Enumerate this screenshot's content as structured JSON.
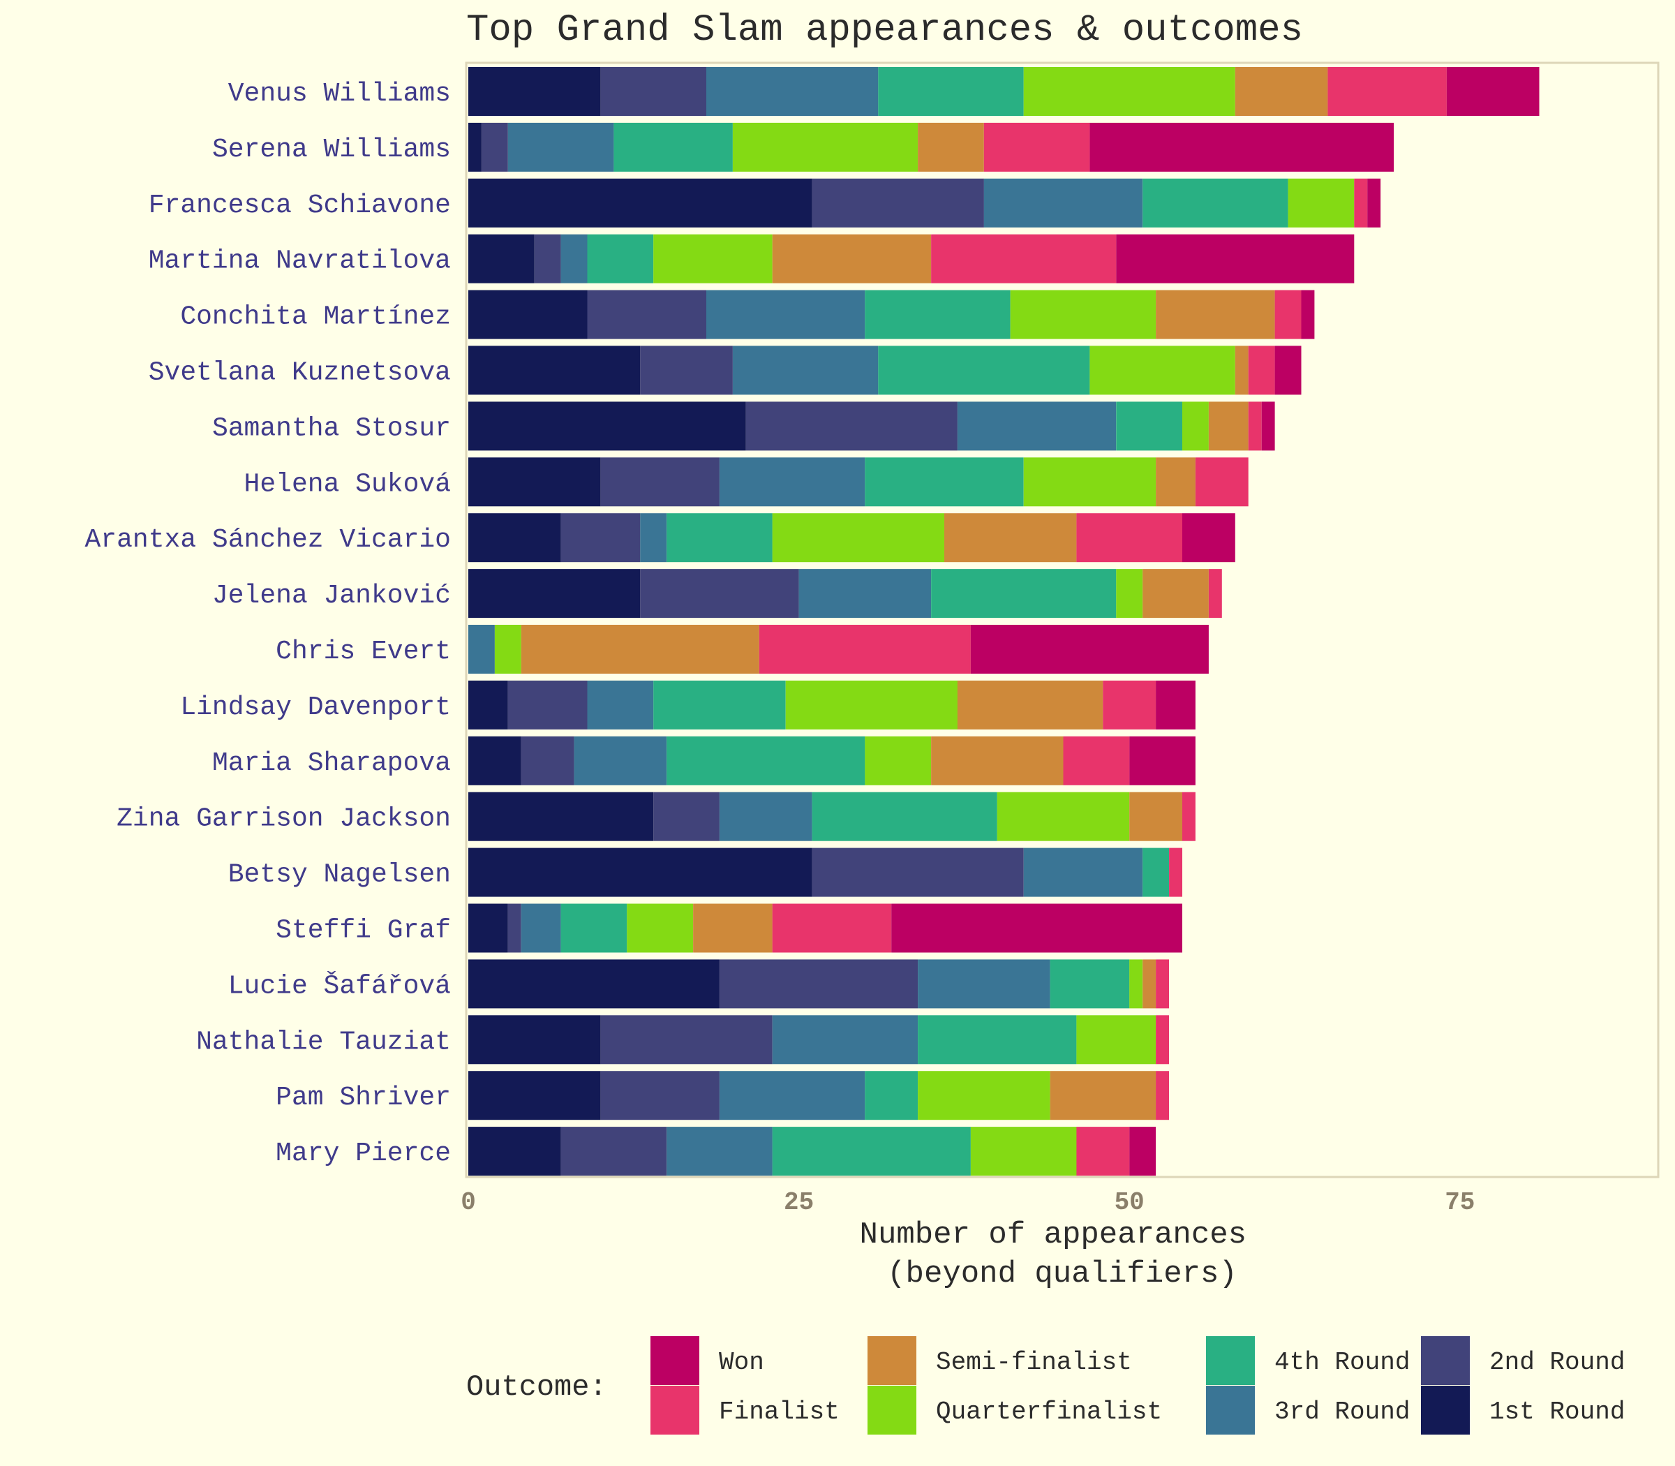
{
  "chart_data": {
    "type": "bar",
    "orientation": "horizontal",
    "stacked": true,
    "title": "Top Grand Slam appearances & outcomes",
    "xlabel": "Number of appearances\n(beyond qualifiers)",
    "ylabel": "",
    "xlim": [
      0,
      90
    ],
    "x_ticks": [
      "0",
      "25",
      "50",
      "75"
    ],
    "grid": false,
    "legend_title": "Outcome:",
    "legend_position": "bottom",
    "categories": [
      "Venus Williams",
      "Serena Williams",
      "Francesca Schiavone",
      "Martina Navratilova",
      "Conchita Martínez",
      "Svetlana Kuznetsova",
      "Samantha Stosur",
      "Helena Suková",
      "Arantxa Sánchez Vicario",
      "Jelena Janković",
      "Chris Evert",
      "Lindsay Davenport",
      "Maria Sharapova",
      "Zina Garrison Jackson",
      "Betsy Nagelsen",
      "Steffi Graf",
      "Lucie Šafářová",
      "Nathalie Tauziat",
      "Pam Shriver",
      "Mary Pierce"
    ],
    "series": [
      {
        "name": "1st Round",
        "color": "#131A55",
        "values": [
          10,
          1,
          26,
          5,
          9,
          13,
          21,
          10,
          7,
          13,
          0,
          3,
          4,
          14,
          26,
          3,
          19,
          10,
          10,
          7
        ]
      },
      {
        "name": "2nd Round",
        "color": "#41437A",
        "values": [
          8,
          2,
          13,
          2,
          9,
          7,
          16,
          9,
          6,
          12,
          0,
          6,
          4,
          5,
          16,
          1,
          15,
          13,
          9,
          8
        ]
      },
      {
        "name": "3rd Round",
        "color": "#3A7595",
        "values": [
          13,
          8,
          12,
          2,
          12,
          11,
          12,
          11,
          2,
          10,
          2,
          5,
          7,
          7,
          9,
          3,
          10,
          11,
          11,
          8
        ]
      },
      {
        "name": "4th Round",
        "color": "#29B083",
        "values": [
          11,
          9,
          11,
          5,
          11,
          16,
          5,
          12,
          8,
          14,
          0,
          10,
          15,
          14,
          2,
          5,
          6,
          12,
          4,
          15
        ]
      },
      {
        "name": "Quarterfinalist",
        "color": "#84DA14",
        "values": [
          16,
          14,
          5,
          9,
          11,
          11,
          2,
          10,
          13,
          2,
          2,
          13,
          5,
          10,
          0,
          5,
          1,
          6,
          10,
          8
        ]
      },
      {
        "name": "Semi-finalist",
        "color": "#CE893A",
        "values": [
          7,
          5,
          0,
          12,
          9,
          1,
          3,
          3,
          10,
          5,
          18,
          11,
          10,
          4,
          0,
          6,
          1,
          0,
          8,
          0
        ]
      },
      {
        "name": "Finalist",
        "color": "#E8346B",
        "values": [
          9,
          8,
          1,
          14,
          2,
          2,
          1,
          4,
          8,
          1,
          16,
          4,
          5,
          1,
          1,
          9,
          1,
          1,
          1,
          4
        ]
      },
      {
        "name": "Won",
        "color": "#BC0063",
        "values": [
          7,
          23,
          1,
          18,
          1,
          2,
          1,
          0,
          4,
          0,
          18,
          3,
          5,
          0,
          0,
          22,
          0,
          0,
          0,
          2
        ]
      }
    ]
  }
}
